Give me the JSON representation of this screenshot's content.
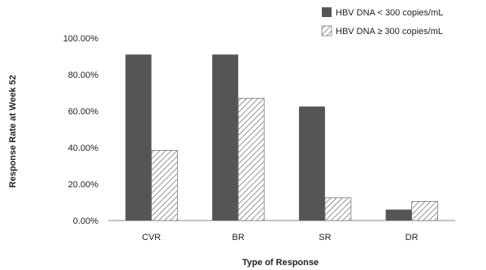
{
  "chart_data": {
    "type": "bar",
    "categories": [
      "CVR",
      "BR",
      "SR",
      "DR"
    ],
    "series": [
      {
        "name": "HBV DNA < 300 copies/mL",
        "values": [
          91,
          91,
          62.5,
          6
        ],
        "color": "#555555",
        "pattern": "solid"
      },
      {
        "name": "HBV DNA ≥ 300 copies/mL",
        "values": [
          38.5,
          67,
          12.5,
          10.5
        ],
        "color": "#ffffff",
        "pattern": "diagonal-hatch"
      }
    ],
    "xlabel": "Type of Response",
    "ylabel": "Response Rate at Week 52",
    "ylim": [
      0,
      100
    ],
    "yticks": [
      0,
      20,
      40,
      60,
      80,
      100
    ],
    "ytick_labels": [
      "0.00%",
      "20.00%",
      "40.00%",
      "60.00%",
      "80.00%",
      "100.00%"
    ],
    "grid": false,
    "legend_position": "top-right"
  }
}
